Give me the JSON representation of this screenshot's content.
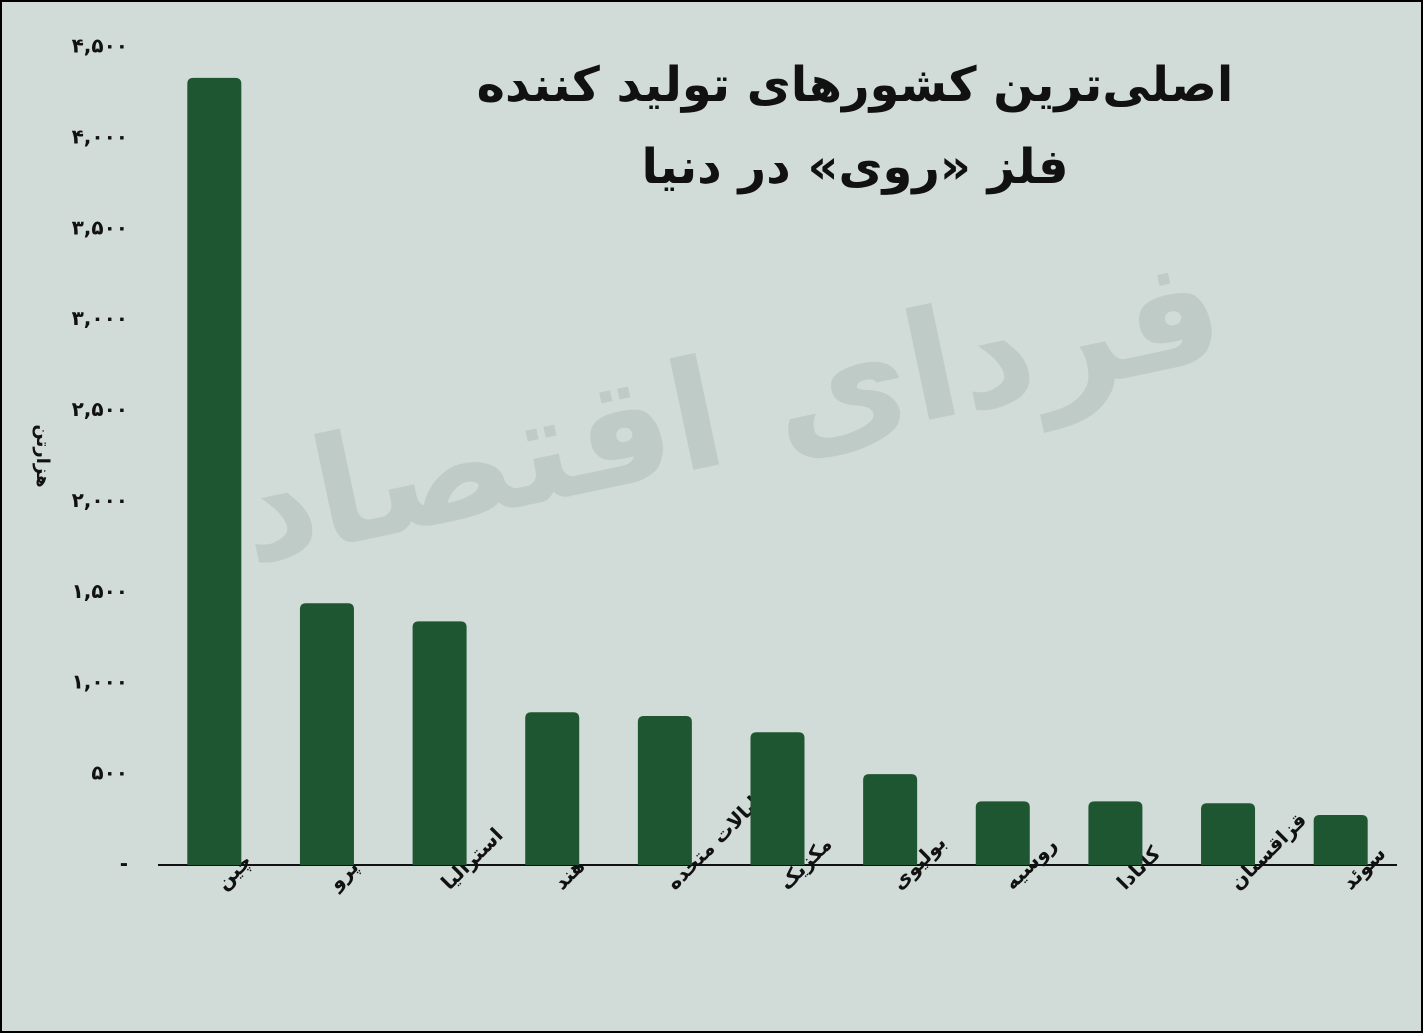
{
  "chart_data": {
    "type": "bar",
    "title_lines": [
      "اصلی‌ترین کشورهای تولید کننده",
      "فلز «روی» در دنیا"
    ],
    "y_label": "هزارتن",
    "watermark": "فردای اقتصاد",
    "categories": [
      "چین",
      "پرو",
      "استرالیا",
      "هند",
      "ایالات متحده",
      "مکزیک",
      "بولیوی",
      "روسیه",
      "کانادا",
      "قزاقستان",
      "سوئد"
    ],
    "values": [
      4330,
      1440,
      1340,
      840,
      820,
      730,
      500,
      350,
      350,
      340,
      275
    ],
    "color": "#1e5631",
    "ylim": [
      0,
      4500
    ],
    "yticks": [
      {
        "value": 0,
        "label": "-"
      },
      {
        "value": 500,
        "label": "۵۰۰"
      },
      {
        "value": 1000,
        "label": "۱,۰۰۰"
      },
      {
        "value": 1500,
        "label": "۱,۵۰۰"
      },
      {
        "value": 2000,
        "label": "۲,۰۰۰"
      },
      {
        "value": 2500,
        "label": "۲,۵۰۰"
      },
      {
        "value": 3000,
        "label": "۳,۰۰۰"
      },
      {
        "value": 3500,
        "label": "۳,۵۰۰"
      },
      {
        "value": 4000,
        "label": "۴,۰۰۰"
      },
      {
        "value": 4500,
        "label": "۴,۵۰۰"
      }
    ],
    "grid": false
  }
}
